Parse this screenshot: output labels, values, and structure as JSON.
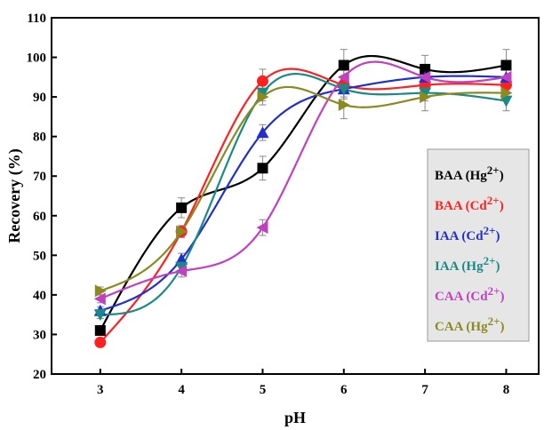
{
  "chart_data": {
    "type": "line",
    "title": "",
    "xlabel": "pH",
    "ylabel": "Recovery (%)",
    "xlim": [
      2.4,
      8.4
    ],
    "ylim": [
      20,
      110
    ],
    "xticks": [
      "3",
      "4",
      "5",
      "6",
      "7",
      "8"
    ],
    "yticks": [
      "20",
      "30",
      "40",
      "50",
      "60",
      "70",
      "80",
      "90",
      "100",
      "110"
    ],
    "grid": false,
    "legend_position": "right",
    "x": [
      3,
      4,
      5,
      6,
      7,
      8
    ],
    "series": [
      {
        "name": "BAA",
        "ion": "Hg",
        "charge": "2+",
        "color": "#000000",
        "marker": "square",
        "values": [
          31,
          62,
          72,
          98,
          97,
          98
        ],
        "errors": [
          1,
          2.5,
          3,
          4,
          3.5,
          4
        ]
      },
      {
        "name": "BAA",
        "ion": "Cd",
        "charge": "2+",
        "color": "#ff2020",
        "marker": "circle",
        "values": [
          28,
          56,
          94,
          93,
          93,
          93
        ],
        "errors": [
          1,
          1.5,
          3,
          2,
          2,
          2
        ]
      },
      {
        "name": "IAA",
        "ion": "Cd",
        "charge": "2+",
        "color": "#2030c8",
        "marker": "triangle-up",
        "values": [
          36,
          49,
          81,
          92,
          95,
          95
        ],
        "errors": [
          1,
          1.5,
          2,
          2,
          2,
          2
        ]
      },
      {
        "name": "IAA",
        "ion": "Hg",
        "charge": "2+",
        "color": "#1a8a86",
        "marker": "triangle-down",
        "values": [
          35,
          47,
          91,
          92,
          91,
          89
        ],
        "errors": [
          1,
          1.5,
          2,
          2.5,
          2,
          2.5
        ]
      },
      {
        "name": "CAA",
        "ion": "Cd",
        "charge": "2+",
        "color": "#c040c0",
        "marker": "triangle-left",
        "values": [
          39,
          46,
          57,
          95,
          95,
          95
        ],
        "errors": [
          1,
          1.5,
          2,
          2.5,
          3,
          2
        ]
      },
      {
        "name": "CAA",
        "ion": "Hg",
        "charge": "2+",
        "color": "#8a8a20",
        "marker": "triangle-right",
        "values": [
          41,
          56,
          90,
          88,
          90,
          91
        ],
        "errors": [
          1,
          1.5,
          2,
          3.5,
          3.5,
          2
        ]
      }
    ]
  }
}
